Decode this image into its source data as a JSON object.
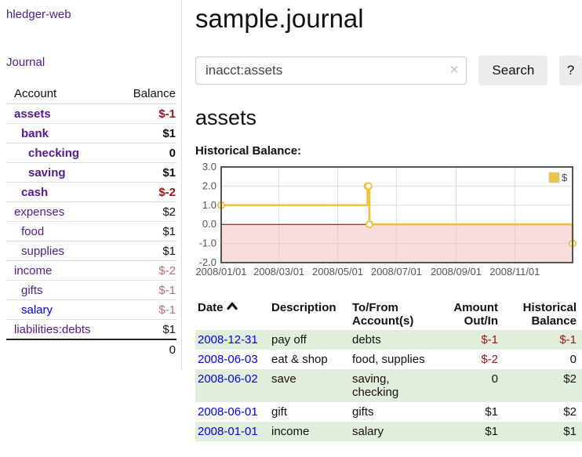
{
  "colors": {
    "purple_link": "#551a8b",
    "blue_link": "#0000ee",
    "negative_strong": "#941616",
    "negative_faded": "#b76e6e",
    "row_stripe_green": "#e1eedb",
    "chart_gold": "#edc240",
    "chart_negative_fill": "#f4bcbc",
    "chart_zero_line": "#800000",
    "chart_border": "#545454"
  },
  "sidebar": {
    "app_title": "hledger-web",
    "nav": [
      {
        "label": "Journal"
      }
    ],
    "accounts_table": {
      "headers": [
        "Account",
        "Balance"
      ],
      "rows": [
        {
          "name": "assets",
          "level": 1,
          "bold": true,
          "balance": "$-1",
          "balance_style": "neg-strong"
        },
        {
          "name": "bank",
          "level": 2,
          "bold": true,
          "balance": "$1",
          "balance_style": ""
        },
        {
          "name": "checking",
          "level": 3,
          "bold": true,
          "balance": "0",
          "balance_style": ""
        },
        {
          "name": "saving",
          "level": 3,
          "bold": true,
          "balance": "$1",
          "balance_style": ""
        },
        {
          "name": "cash",
          "level": 2,
          "bold": true,
          "balance": "$-2",
          "balance_style": "neg-strong"
        },
        {
          "name": "expenses",
          "level": 1,
          "bold": false,
          "balance": "$2",
          "balance_style": ""
        },
        {
          "name": "food",
          "level": 2,
          "bold": false,
          "balance": "$1",
          "balance_style": ""
        },
        {
          "name": "supplies",
          "level": 2,
          "bold": false,
          "balance": "$1",
          "balance_style": ""
        },
        {
          "name": "income",
          "level": 1,
          "bold": false,
          "balance": "$-2",
          "balance_style": "neg-faded"
        },
        {
          "name": "gifts",
          "level": 2,
          "bold": false,
          "balance": "$-1",
          "balance_style": "neg-faded"
        },
        {
          "name": "salary",
          "level": 2,
          "bold": false,
          "balance": "$-1",
          "balance_style": "neg-faded",
          "link_color": "blue"
        },
        {
          "name": "liabilities:debts",
          "level": 1,
          "bold": false,
          "balance": "$1",
          "balance_style": ""
        }
      ],
      "total": "0"
    }
  },
  "header": {
    "title": "sample.journal"
  },
  "search": {
    "value": "inacct:assets",
    "clear_icon": "✕",
    "button_label": "Search",
    "help_label": "?"
  },
  "account_page": {
    "title": "assets",
    "chart_label": "Historical Balance:"
  },
  "chart_data": {
    "type": "line",
    "title": "Historical Balance:",
    "step": true,
    "series": [
      {
        "name": "$",
        "color": "#edc240",
        "points": [
          [
            "2008-01-01",
            1
          ],
          [
            "2008-06-01",
            2
          ],
          [
            "2008-06-02",
            2
          ],
          [
            "2008-06-03",
            0
          ],
          [
            "2008-12-31",
            -1
          ]
        ]
      }
    ],
    "xrange": [
      "2008-01-01",
      "2008-12-31"
    ],
    "ylim": [
      -2,
      3
    ],
    "yticks": [
      3.0,
      2.0,
      1.0,
      0.0,
      -1.0,
      -2.0
    ],
    "xticks": [
      "2008/01/01",
      "2008/03/01",
      "2008/05/01",
      "2008/07/01",
      "2008/09/01",
      "2008/11/01"
    ],
    "legend_position": "top-right",
    "grid": true,
    "negative_region_fill": "#f4bcbc",
    "zero_line_color": "#800000"
  },
  "transactions": {
    "headers": [
      {
        "label": "Date",
        "sort_indicator": "chevron-up"
      },
      {
        "label": "Description"
      },
      {
        "label": "To/From Account(s)"
      },
      {
        "label": "Amount Out/In",
        "align": "right"
      },
      {
        "label": "Historical Balance",
        "align": "right"
      }
    ],
    "rows": [
      {
        "date": "2008-12-31",
        "description": "pay off",
        "accounts": "debts",
        "amount": "$-1",
        "amount_neg": true,
        "balance": "$-1",
        "balance_neg": true
      },
      {
        "date": "2008-06-03",
        "description": "eat & shop",
        "accounts": "food, supplies",
        "amount": "$-2",
        "amount_neg": true,
        "balance": "0",
        "balance_neg": false
      },
      {
        "date": "2008-06-02",
        "description": "save",
        "accounts": "saving, checking",
        "amount": "0",
        "amount_neg": false,
        "balance": "$2",
        "balance_neg": false
      },
      {
        "date": "2008-06-01",
        "description": "gift",
        "accounts": "gifts",
        "amount": "$1",
        "amount_neg": false,
        "balance": "$2",
        "balance_neg": false
      },
      {
        "date": "2008-01-01",
        "description": "income",
        "accounts": "salary",
        "amount": "$1",
        "amount_neg": false,
        "balance": "$1",
        "balance_neg": false
      }
    ]
  }
}
